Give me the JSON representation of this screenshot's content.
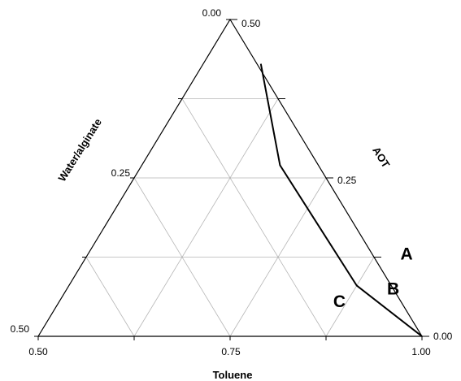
{
  "chart_data": {
    "type": "ternary",
    "axes": {
      "bottom": {
        "label": "Toluene",
        "ticks": [
          "0.50",
          "0.75",
          "1.00"
        ]
      },
      "left": {
        "label": "Water/alginate",
        "ticks": [
          "0.50",
          "0.25",
          "0.00"
        ]
      },
      "right": {
        "label": "AOT",
        "ticks": [
          "0.50",
          "0.25",
          "0.00"
        ]
      }
    },
    "ranges": {
      "toluene": [
        0.5,
        1.0
      ],
      "aot": [
        0.0,
        0.5
      ],
      "water_alginate": [
        0.0,
        0.5
      ]
    },
    "grid": true,
    "phase_boundary": [
      {
        "toluene": 0.575,
        "aot": 0.43
      },
      {
        "toluene": 0.68,
        "aot": 0.27
      },
      {
        "toluene": 0.875,
        "aot": 0.08
      },
      {
        "toluene": 1.0,
        "aot": 0.0
      }
    ],
    "regions": [
      {
        "label": "A",
        "toluene": 0.915,
        "aot": 0.13
      },
      {
        "label": "B",
        "toluene": 0.925,
        "aot": 0.075
      },
      {
        "label": "C",
        "toluene": 0.865,
        "aot": 0.055
      }
    ]
  }
}
